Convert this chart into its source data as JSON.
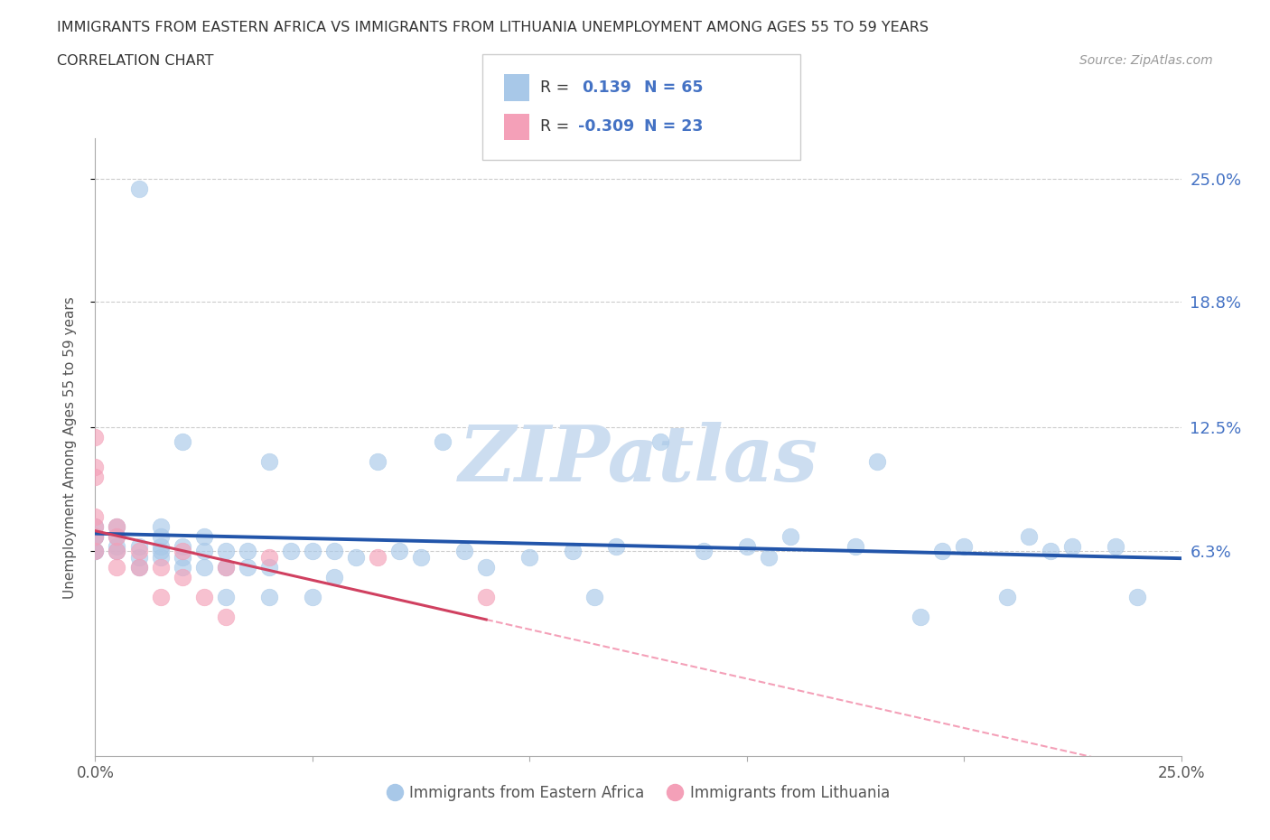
{
  "title_line1": "IMMIGRANTS FROM EASTERN AFRICA VS IMMIGRANTS FROM LITHUANIA UNEMPLOYMENT AMONG AGES 55 TO 59 YEARS",
  "title_line2": "CORRELATION CHART",
  "source_text": "Source: ZipAtlas.com",
  "ylabel": "Unemployment Among Ages 55 to 59 years",
  "R_eastern": 0.139,
  "N_eastern": 65,
  "R_lithuania": -0.309,
  "N_lithuania": 23,
  "color_eastern": "#a8c8e8",
  "color_lithuania": "#f4a0b8",
  "line_color_eastern": "#2255aa",
  "line_color_lithuania": "#d04060",
  "line_color_lithuania_dash": "#f4a0b8",
  "label_color": "#4472c4",
  "xlim": [
    0.0,
    0.25
  ],
  "ylim": [
    -0.04,
    0.27
  ],
  "ytick_values": [
    0.063,
    0.125,
    0.188,
    0.25
  ],
  "ytick_labels": [
    "6.3%",
    "12.5%",
    "18.8%",
    "25.0%"
  ],
  "xtick_values": [
    0.0,
    0.05,
    0.1,
    0.15,
    0.2,
    0.25
  ],
  "xtick_labels": [
    "0.0%",
    "",
    "",
    "",
    "",
    "25.0%"
  ],
  "eastern_africa_x": [
    0.0,
    0.0,
    0.0,
    0.0,
    0.0,
    0.005,
    0.005,
    0.005,
    0.005,
    0.01,
    0.01,
    0.01,
    0.01,
    0.015,
    0.015,
    0.015,
    0.015,
    0.015,
    0.02,
    0.02,
    0.02,
    0.02,
    0.025,
    0.025,
    0.025,
    0.03,
    0.03,
    0.03,
    0.035,
    0.035,
    0.04,
    0.04,
    0.04,
    0.045,
    0.05,
    0.05,
    0.055,
    0.055,
    0.06,
    0.065,
    0.07,
    0.075,
    0.08,
    0.085,
    0.09,
    0.1,
    0.11,
    0.115,
    0.12,
    0.13,
    0.14,
    0.15,
    0.155,
    0.16,
    0.175,
    0.18,
    0.19,
    0.195,
    0.2,
    0.21,
    0.215,
    0.22,
    0.225,
    0.235,
    0.24
  ],
  "eastern_africa_y": [
    0.063,
    0.063,
    0.07,
    0.07,
    0.075,
    0.063,
    0.065,
    0.07,
    0.075,
    0.055,
    0.06,
    0.065,
    0.245,
    0.06,
    0.063,
    0.065,
    0.07,
    0.075,
    0.055,
    0.06,
    0.065,
    0.118,
    0.055,
    0.063,
    0.07,
    0.04,
    0.055,
    0.063,
    0.055,
    0.063,
    0.04,
    0.055,
    0.108,
    0.063,
    0.04,
    0.063,
    0.05,
    0.063,
    0.06,
    0.108,
    0.063,
    0.06,
    0.118,
    0.063,
    0.055,
    0.06,
    0.063,
    0.04,
    0.065,
    0.118,
    0.063,
    0.065,
    0.06,
    0.07,
    0.065,
    0.108,
    0.03,
    0.063,
    0.065,
    0.04,
    0.07,
    0.063,
    0.065,
    0.065,
    0.04
  ],
  "lithuania_x": [
    0.0,
    0.0,
    0.0,
    0.0,
    0.0,
    0.0,
    0.0,
    0.005,
    0.005,
    0.005,
    0.005,
    0.01,
    0.01,
    0.015,
    0.015,
    0.02,
    0.02,
    0.025,
    0.03,
    0.03,
    0.04,
    0.065,
    0.09
  ],
  "lithuania_y": [
    0.063,
    0.07,
    0.075,
    0.08,
    0.1,
    0.105,
    0.12,
    0.055,
    0.063,
    0.07,
    0.075,
    0.055,
    0.063,
    0.04,
    0.055,
    0.05,
    0.063,
    0.04,
    0.03,
    0.055,
    0.06,
    0.06,
    0.04
  ],
  "watermark_color": "#ccddf0",
  "grid_color": "#cccccc",
  "spine_color": "#aaaaaa"
}
